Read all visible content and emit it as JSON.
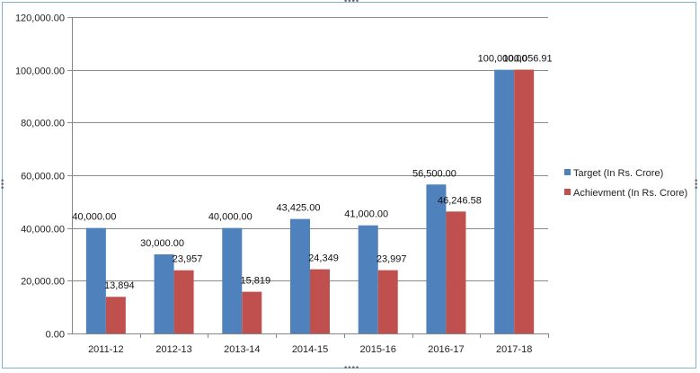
{
  "chart_data": {
    "type": "bar",
    "categories": [
      "2011-12",
      "2012-13",
      "2013-14",
      "2014-15",
      "2015-16",
      "2016-17",
      "2017-18"
    ],
    "series": [
      {
        "name": "Target (In Rs. Crore)",
        "color": "#4f81bd",
        "values": [
          40000,
          30000,
          40000,
          43425,
          41000,
          56500,
          100000
        ],
        "labels": [
          "40,000.00",
          "30,000.00",
          "40,000.00",
          "43,425.00",
          "41,000.00",
          "56,500.00",
          "100,000.00"
        ]
      },
      {
        "name": "Achievment  (In Rs. Crore)",
        "color": "#c0504d",
        "values": [
          13894,
          23957,
          15819,
          24349,
          23997,
          46246.58,
          100056.91
        ],
        "labels": [
          "13,894",
          "23,957",
          "15,819",
          "24,349",
          "23,997",
          "46,246.58",
          "100,056.91"
        ]
      }
    ],
    "yticks": [
      0,
      20000,
      40000,
      60000,
      80000,
      100000,
      120000
    ],
    "ytick_labels": [
      "0.00",
      "20,000.00",
      "40,000.00",
      "60,000.00",
      "80,000.00",
      "100,000.00",
      "120,000.00"
    ],
    "ylim": [
      0,
      120000
    ],
    "grid": true,
    "legend_position": "right"
  }
}
